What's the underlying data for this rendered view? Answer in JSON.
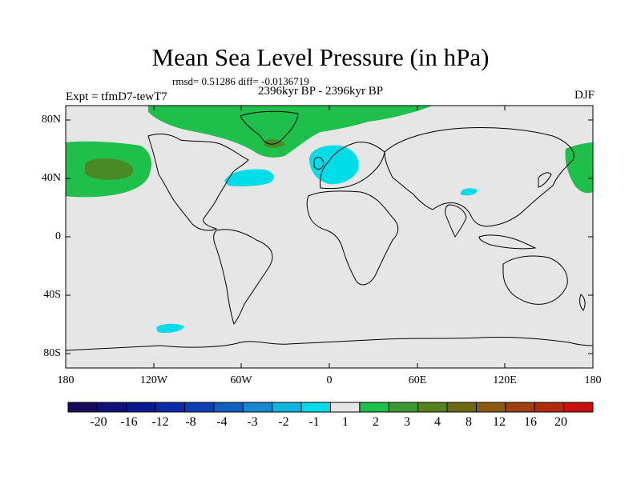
{
  "header": {
    "title": "Mean Sea Level Pressure (in hPa)",
    "stats": "rmsd= 0.51286 diff= -0.0136719",
    "period": "2396kyr BP - 2396kyr BP",
    "experiment": "Expt = tfmD7-tewT7",
    "season": "DJF"
  },
  "map": {
    "projection": "cylindrical equidistant",
    "lon_range": [
      -180,
      180
    ],
    "lat_range": [
      -90,
      90
    ],
    "background_color": "#e6e6e6",
    "coastline_color": "#000000",
    "lat_labels": [
      "80N",
      "40N",
      "0",
      "40S",
      "80S"
    ],
    "lon_labels": [
      "180",
      "120W",
      "60W",
      "0",
      "60E",
      "120E",
      "180"
    ],
    "anomaly_regions": [
      {
        "name": "north-pacific-high",
        "color": "#1fbf4c",
        "center_lon": -150,
        "center_lat": 45
      },
      {
        "name": "north-pacific-core",
        "color": "#4a8a24",
        "center_lon": -152,
        "center_lat": 46
      },
      {
        "name": "arctic-greenland-high",
        "color": "#1fbf4c",
        "center_lon": -20,
        "center_lat": 82
      },
      {
        "name": "north-atlantic-low",
        "color": "#00dde8",
        "center_lon": -55,
        "center_lat": 40
      },
      {
        "name": "europe-low",
        "color": "#00dde8",
        "center_lon": 12,
        "center_lat": 50
      },
      {
        "name": "india-low",
        "color": "#00dde8",
        "center_lon": 95,
        "center_lat": 30
      },
      {
        "name": "southern-pacific-low",
        "color": "#00dde8",
        "center_lon": -110,
        "center_lat": -63
      },
      {
        "name": "nw-pacific-high",
        "color": "#1fbf4c",
        "center_lon": 172,
        "center_lat": 45
      }
    ]
  },
  "colorbar": {
    "labels": [
      "-20",
      "-16",
      "-12",
      "-8",
      "-4",
      "-3",
      "-2",
      "-1",
      "1",
      "2",
      "3",
      "4",
      "8",
      "12",
      "16",
      "20"
    ],
    "colors": [
      "#1a0a5e",
      "#10107a",
      "#0a1890",
      "#0a2aa8",
      "#0a40b4",
      "#1060c0",
      "#1888d0",
      "#10b4dc",
      "#00dde8",
      "#e6e6e6",
      "#1fbf4c",
      "#3c9830",
      "#55801c",
      "#6e6a14",
      "#8a5a10",
      "#a04010",
      "#b02a10",
      "#c81010"
    ]
  }
}
